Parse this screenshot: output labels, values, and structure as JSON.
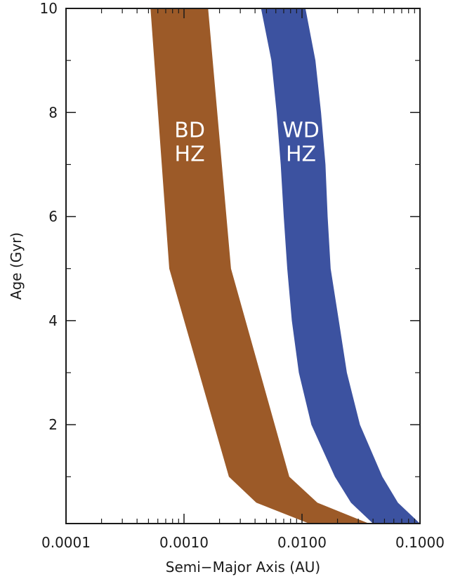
{
  "chart_data": {
    "type": "area",
    "title": "",
    "xlabel": "Semi−Major Axis (AU)",
    "ylabel": "Age (Gyr)",
    "x_scale": "log",
    "xlim": [
      0.0001,
      0.1
    ],
    "ylim": [
      0.1,
      10
    ],
    "xticks": [
      "0.0001",
      "0.0010",
      "0.0100",
      "0.1000"
    ],
    "yticks": [
      "2",
      "4",
      "6",
      "8",
      "10"
    ],
    "grid": false,
    "series": [
      {
        "name": "BD HZ",
        "color": "#9c5a28",
        "inner_edge": {
          "age": [
            0.1,
            0.5,
            1.0,
            5.0,
            10.0
          ],
          "a": [
            0.0115,
            0.0041,
            0.0024,
            0.00075,
            0.00052
          ]
        },
        "outer_edge": {
          "age": [
            0.1,
            0.5,
            1.0,
            5.0,
            10.0
          ],
          "a": [
            0.037,
            0.0135,
            0.0078,
            0.0025,
            0.0016
          ]
        },
        "label_lines": [
          "BD",
          "HZ"
        ]
      },
      {
        "name": "WD HZ",
        "color": "#3c52a0",
        "inner_edge": {
          "age": [
            0.1,
            0.5,
            1.0,
            2.0,
            3.0,
            4.0,
            5.0,
            6.0,
            7.0,
            8.0,
            9.0,
            10.0
          ],
          "a": [
            0.04,
            0.026,
            0.019,
            0.012,
            0.0094,
            0.0082,
            0.0075,
            0.007,
            0.0066,
            0.0061,
            0.0055,
            0.0045
          ]
        },
        "outer_edge": {
          "age": [
            0.1,
            0.5,
            1.0,
            2.0,
            3.0,
            4.0,
            5.0,
            6.0,
            7.0,
            8.0,
            9.0,
            10.0
          ],
          "a": [
            0.1,
            0.065,
            0.048,
            0.031,
            0.024,
            0.0205,
            0.0175,
            0.0165,
            0.0158,
            0.0145,
            0.013,
            0.0107
          ]
        },
        "label_lines": [
          "WD",
          "HZ"
        ]
      }
    ]
  }
}
